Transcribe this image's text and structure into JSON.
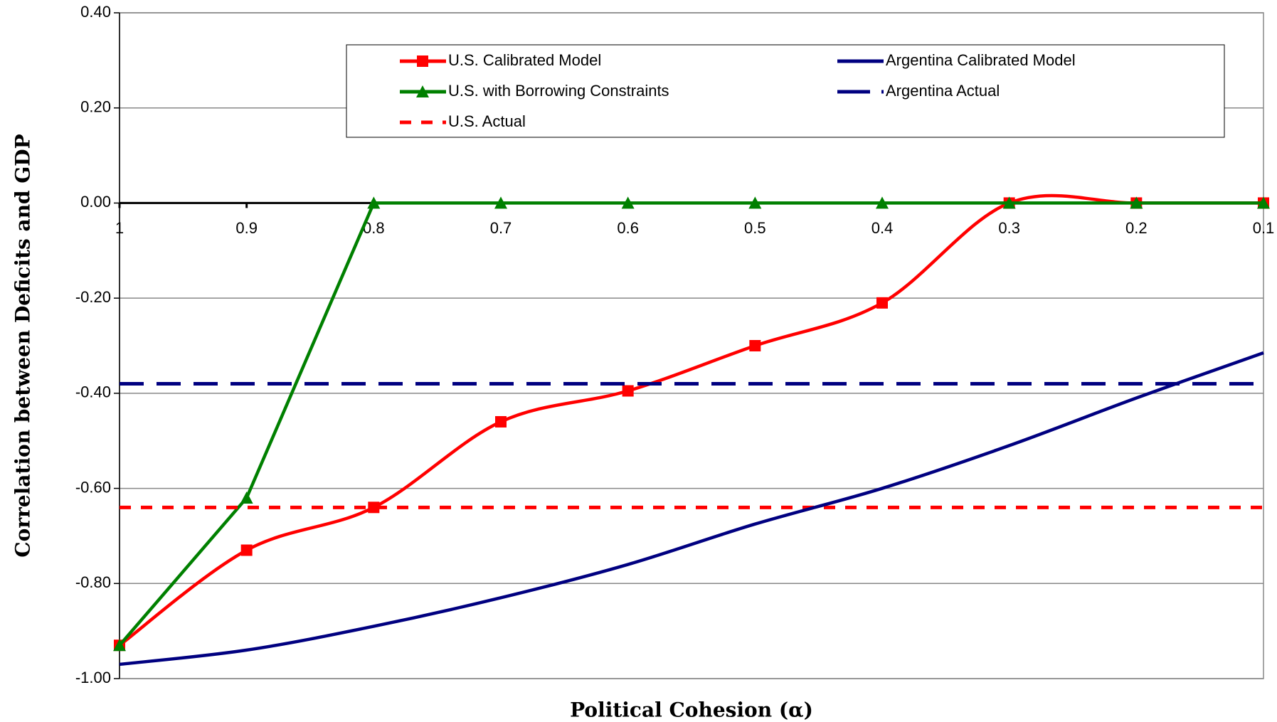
{
  "chart_data": {
    "type": "line",
    "x_label": "Political Cohesion (α)",
    "y_label": "Correlation between Deficits and GDP",
    "categories": [
      1,
      0.9,
      0.8,
      0.7,
      0.6,
      0.5,
      0.4,
      0.3,
      0.2,
      0.1
    ],
    "ylim": [
      -1.0,
      0.4
    ],
    "yticks": [
      {
        "value": 0.4,
        "label": "0.40"
      },
      {
        "value": 0.2,
        "label": "0.20"
      },
      {
        "value": 0,
        "label": "0.00"
      },
      {
        "value": -0.2,
        "label": "-0.20"
      },
      {
        "value": -0.4,
        "label": "-0.40"
      },
      {
        "value": -0.6,
        "label": "-0.60"
      },
      {
        "value": -0.8,
        "label": "-0.80"
      },
      {
        "value": -1.0,
        "label": "-1.00"
      }
    ],
    "grid": true,
    "series": [
      {
        "name": "U.S. Calibrated Model",
        "color": "#ff0000",
        "style": "smooth",
        "marker": "square",
        "values": [
          -0.93,
          -0.73,
          -0.64,
          -0.46,
          -0.395,
          -0.3,
          -0.21,
          0.0,
          0.0,
          0.0
        ]
      },
      {
        "name": "U.S. with Borrowing Constraints",
        "color": "#008000",
        "style": "solid",
        "marker": "triangle",
        "values": [
          -0.93,
          -0.62,
          0.0,
          0.0,
          0.0,
          0.0,
          0.0,
          0.0,
          0.0,
          0.0
        ]
      },
      {
        "name": "U.S. Actual",
        "color": "#ff0000",
        "style": "dotted",
        "values": [
          -0.64,
          -0.64,
          -0.64,
          -0.64,
          -0.64,
          -0.64,
          -0.64,
          -0.64,
          -0.64,
          -0.64
        ]
      },
      {
        "name": "Argentina Calibrated Model",
        "color": "#000080",
        "style": "smooth",
        "values": [
          -0.97,
          -0.94,
          -0.89,
          -0.83,
          -0.76,
          -0.675,
          -0.6,
          -0.51,
          -0.41,
          -0.315
        ]
      },
      {
        "name": "Argentina Actual",
        "color": "#000080",
        "style": "dashed",
        "values": [
          -0.38,
          -0.38,
          -0.38,
          -0.38,
          -0.38,
          -0.38,
          -0.38,
          -0.38,
          -0.38,
          -0.38
        ]
      }
    ]
  }
}
